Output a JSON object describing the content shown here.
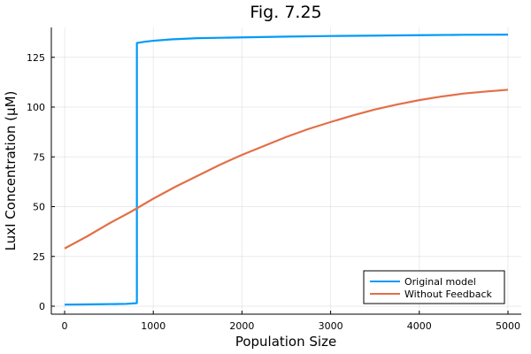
{
  "chart_data": {
    "type": "line",
    "title": "Fig. 7.25",
    "xlabel": "Population Size",
    "ylabel": "LuxI Concentration (μM)",
    "xlim": [
      -150,
      5150
    ],
    "ylim": [
      -4,
      140
    ],
    "x_ticks": [
      0,
      1000,
      2000,
      3000,
      4000,
      5000
    ],
    "x_tick_labels": [
      "0",
      "1000",
      "2000",
      "3000",
      "4000",
      "5000"
    ],
    "y_ticks": [
      0,
      25,
      50,
      75,
      100,
      125
    ],
    "y_tick_labels": [
      "0",
      "25",
      "50",
      "75",
      "100",
      "125"
    ],
    "grid": true,
    "legend_position": "bottom-right",
    "series": [
      {
        "name": "Original model",
        "color": "#009AFA",
        "points": [
          [
            0,
            0.8
          ],
          [
            200,
            0.9
          ],
          [
            400,
            1.0
          ],
          [
            600,
            1.1
          ],
          [
            700,
            1.2
          ],
          [
            800,
            1.5
          ],
          [
            815,
            1.6
          ],
          [
            815,
            132.2
          ],
          [
            900,
            132.8
          ],
          [
            1000,
            133.3
          ],
          [
            1200,
            134.0
          ],
          [
            1500,
            134.6
          ],
          [
            2000,
            135.0
          ],
          [
            2500,
            135.4
          ],
          [
            3000,
            135.7
          ],
          [
            3500,
            135.9
          ],
          [
            4000,
            136.1
          ],
          [
            4500,
            136.3
          ],
          [
            5000,
            136.4
          ]
        ]
      },
      {
        "name": "Without Feedback",
        "color": "#E36F47",
        "points": [
          [
            0,
            29
          ],
          [
            250,
            35
          ],
          [
            500,
            41.5
          ],
          [
            750,
            47.5
          ],
          [
            1000,
            54
          ],
          [
            1250,
            60
          ],
          [
            1500,
            65.5
          ],
          [
            1750,
            71
          ],
          [
            2000,
            76
          ],
          [
            2250,
            80.5
          ],
          [
            2500,
            85
          ],
          [
            2750,
            89
          ],
          [
            3000,
            92.5
          ],
          [
            3250,
            95.8
          ],
          [
            3500,
            98.8
          ],
          [
            3750,
            101.3
          ],
          [
            4000,
            103.5
          ],
          [
            4250,
            105.3
          ],
          [
            4500,
            106.8
          ],
          [
            4750,
            107.8
          ],
          [
            5000,
            108.7
          ]
        ]
      }
    ]
  }
}
